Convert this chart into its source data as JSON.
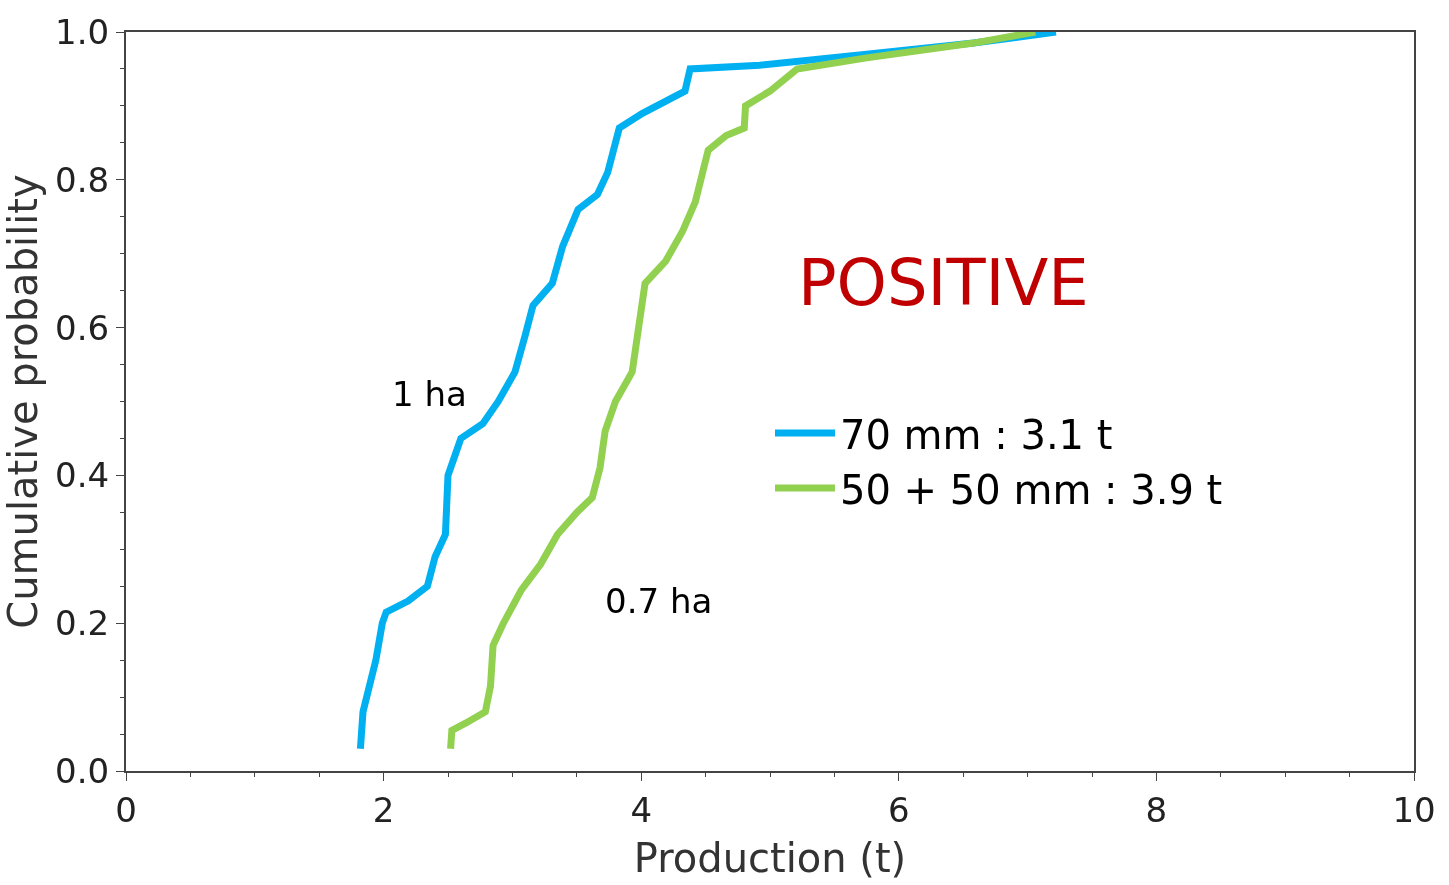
{
  "chart_data": {
    "type": "line",
    "xlabel": "Production (t)",
    "ylabel": "Cumulative probability",
    "xlim": [
      0,
      10
    ],
    "xticks": [
      0,
      2,
      4,
      6,
      8,
      10
    ],
    "ylim": [
      0,
      1
    ],
    "yticks": [
      {
        "value": 0,
        "label": "0.0"
      },
      {
        "value": 0.2,
        "label": "0.2"
      },
      {
        "value": 0.4,
        "label": "0.4"
      },
      {
        "value": 0.6,
        "label": "0.6"
      },
      {
        "value": 0.8,
        "label": "0.8"
      },
      {
        "value": 1,
        "label": "1.0"
      }
    ],
    "legend": "right",
    "marker": "none",
    "line_style": "solid",
    "series": [
      {
        "name": "70 mm : 3.1 t",
        "color": "#00b0f0",
        "x": [
          1.82,
          1.84,
          1.94,
          1.99,
          2.02,
          2.19,
          2.34,
          2.4,
          2.48,
          2.5,
          2.56,
          2.6,
          2.77,
          2.89,
          3.02,
          3.1,
          3.16,
          3.31,
          3.39,
          3.51,
          3.66,
          3.74,
          3.83,
          4.01,
          4.34,
          4.38,
          4.92,
          5.75,
          6.58,
          7.22
        ],
        "values": [
          0.03,
          0.08,
          0.15,
          0.2,
          0.215,
          0.23,
          0.25,
          0.29,
          0.32,
          0.4,
          0.43,
          0.45,
          0.47,
          0.5,
          0.54,
          0.59,
          0.63,
          0.66,
          0.71,
          0.76,
          0.78,
          0.81,
          0.87,
          0.89,
          0.92,
          0.95,
          0.955,
          0.97,
          0.985,
          1.0
        ]
      },
      {
        "name": "50 + 50 mm : 3.9 t",
        "color": "#92d050",
        "x": [
          2.52,
          2.53,
          2.64,
          2.79,
          2.83,
          2.85,
          2.93,
          3.07,
          3.22,
          3.35,
          3.5,
          3.62,
          3.68,
          3.72,
          3.8,
          3.93,
          3.98,
          4.03,
          4.19,
          4.32,
          4.42,
          4.52,
          4.66,
          4.8,
          4.81,
          5.0,
          5.21,
          5.75,
          6.58,
          7.06
        ],
        "values": [
          0.03,
          0.055,
          0.065,
          0.08,
          0.115,
          0.17,
          0.2,
          0.245,
          0.28,
          0.32,
          0.35,
          0.37,
          0.41,
          0.46,
          0.5,
          0.54,
          0.6,
          0.66,
          0.69,
          0.73,
          0.77,
          0.84,
          0.86,
          0.87,
          0.9,
          0.92,
          0.95,
          0.965,
          0.985,
          1.0
        ]
      }
    ],
    "annotations": [
      "POSITIVE",
      "1 ha",
      "0.7 ha"
    ]
  }
}
